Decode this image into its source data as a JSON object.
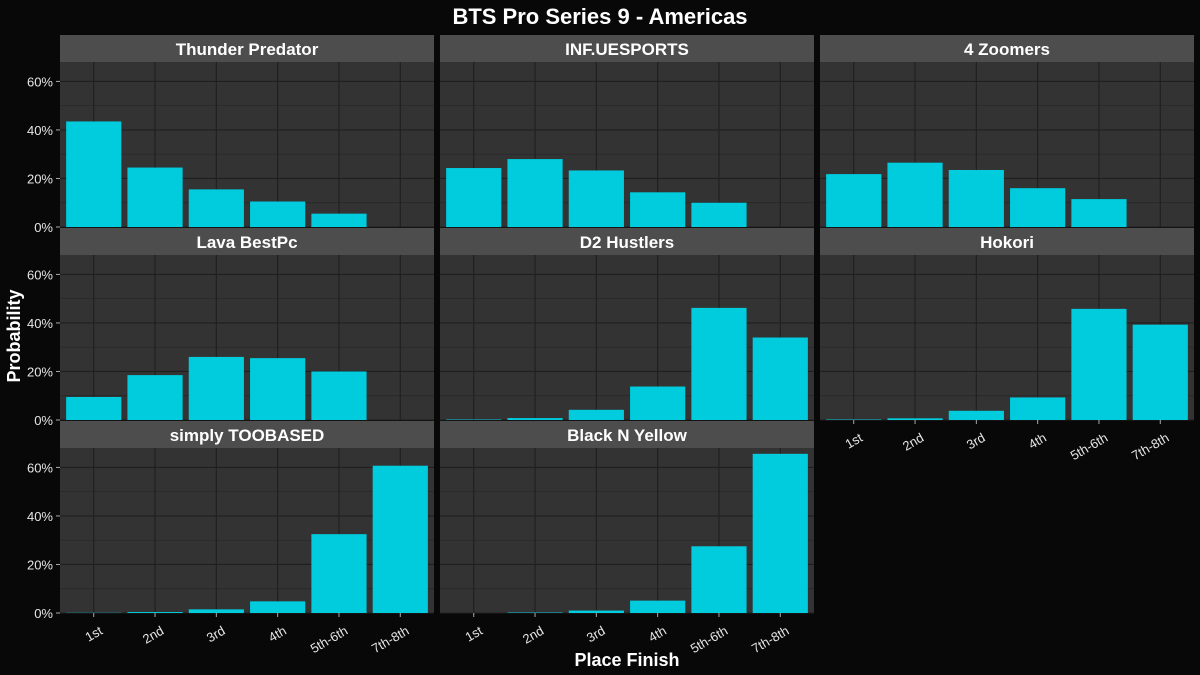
{
  "chart_data": {
    "type": "bar",
    "title": "BTS Pro Series 9 - Americas",
    "xlabel": "Place Finish",
    "ylabel": "Probability",
    "categories": [
      "1st",
      "2nd",
      "3rd",
      "4th",
      "5th-6th",
      "7th-8th"
    ],
    "y_ticks": [
      "0%",
      "20%",
      "40%",
      "60%"
    ],
    "ylim": [
      0,
      0.68
    ],
    "grid": true,
    "bar_color": "#00CCDD",
    "panel_color": "#333333",
    "strip_color": "#4d4d4d",
    "background_color": "#080808",
    "facets": [
      {
        "name": "Thunder Predator",
        "values": [
          0.435,
          0.245,
          0.155,
          0.105,
          0.055,
          0.0
        ]
      },
      {
        "name": "INF.UESPORTS",
        "values": [
          0.243,
          0.28,
          0.233,
          0.143,
          0.1,
          0.0
        ]
      },
      {
        "name": "4 Zoomers",
        "values": [
          0.218,
          0.265,
          0.235,
          0.16,
          0.115,
          0.0
        ]
      },
      {
        "name": "Lava BestPc",
        "values": [
          0.095,
          0.185,
          0.26,
          0.255,
          0.2,
          0.0
        ]
      },
      {
        "name": "D2 Hustlers",
        "values": [
          0.002,
          0.008,
          0.042,
          0.138,
          0.462,
          0.34
        ]
      },
      {
        "name": "Hokori",
        "values": [
          0.002,
          0.007,
          0.038,
          0.093,
          0.458,
          0.393
        ]
      },
      {
        "name": "simply TOOBASED",
        "values": [
          0.001,
          0.004,
          0.015,
          0.048,
          0.325,
          0.607
        ]
      },
      {
        "name": "Black N Yellow",
        "values": [
          0.0,
          0.002,
          0.01,
          0.051,
          0.275,
          0.656
        ]
      }
    ]
  }
}
